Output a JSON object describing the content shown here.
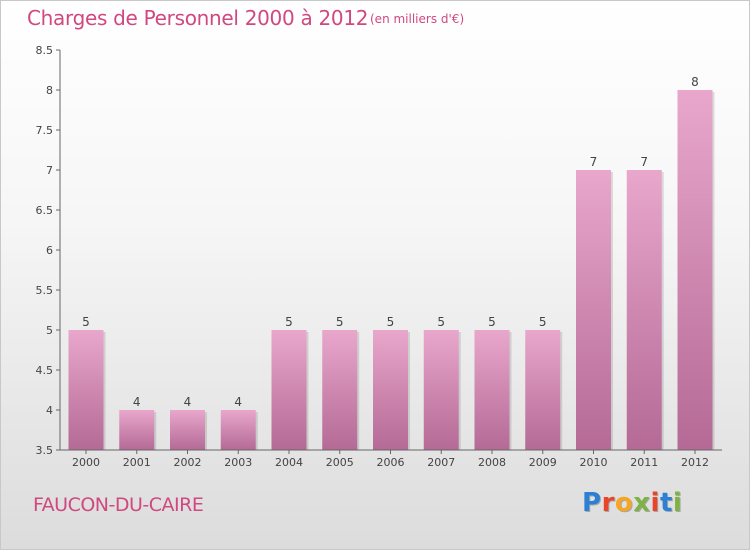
{
  "header": {
    "title": "Charges de Personnel 2000 à 2012",
    "unit": "(en milliers d'€)"
  },
  "footer": {
    "commune": "FAUCON-DU-CAIRE",
    "logo": "Proxiti",
    "logo_colors": [
      "#2b7fd4",
      "#e8452c",
      "#f5a623",
      "#7cb342",
      "#e8452c",
      "#2b7fd4",
      "#7cb342"
    ]
  },
  "colors": {
    "title": "#d04880",
    "bar_top": "#e9a7cc",
    "bar_bottom": "#b46a95",
    "axis": "#666666",
    "label": "#444444"
  },
  "chart_data": {
    "type": "bar",
    "title": "Charges de Personnel 2000 à 2012",
    "subtitle": "(en milliers d'€)",
    "categories": [
      "2000",
      "2001",
      "2002",
      "2003",
      "2004",
      "2005",
      "2006",
      "2007",
      "2008",
      "2009",
      "2010",
      "2011",
      "2012"
    ],
    "values": [
      5,
      4,
      4,
      4,
      5,
      5,
      5,
      5,
      5,
      5,
      7,
      7,
      8
    ],
    "data_labels": [
      "5",
      "4",
      "4",
      "4",
      "5",
      "5",
      "5",
      "5",
      "5",
      "5",
      "7",
      "7",
      "8"
    ],
    "ylim": [
      3.5,
      8.5
    ],
    "yticks": [
      "3.5",
      "4",
      "4.5",
      "5",
      "5.5",
      "6",
      "6.5",
      "7",
      "7.5",
      "8",
      "8.5"
    ],
    "grid": false,
    "legend": "none"
  }
}
